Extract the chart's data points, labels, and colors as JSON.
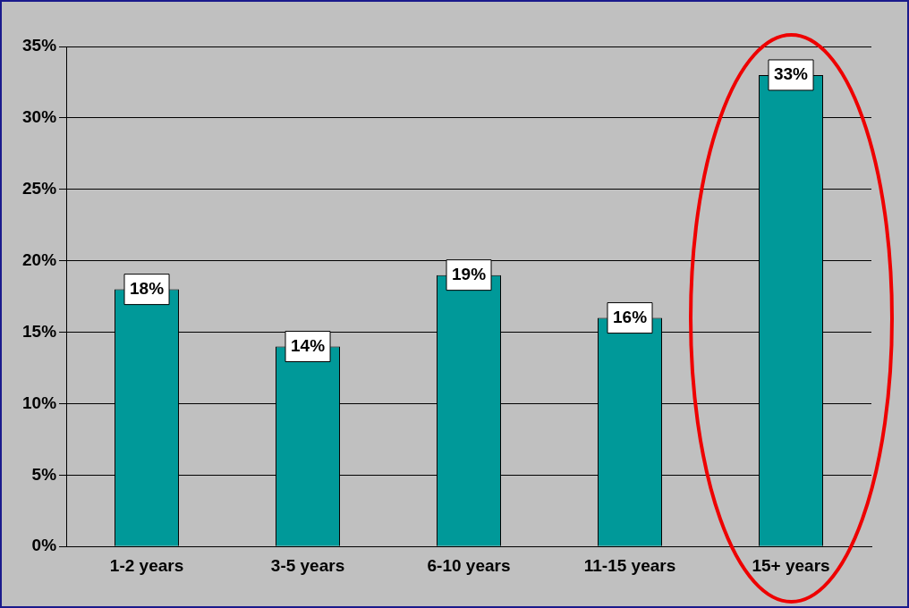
{
  "chart_data": {
    "type": "bar",
    "categories": [
      "1-2 years",
      "3-5 years",
      "6-10 years",
      "11-15 years",
      "15+ years"
    ],
    "values": [
      18,
      14,
      19,
      16,
      33
    ],
    "color": "#009999",
    "value_labels": [
      "18%",
      "14%",
      "19%",
      "16%",
      "33%"
    ],
    "ylim": [
      0,
      35
    ],
    "yticks": [
      {
        "value": 0,
        "label": "0%"
      },
      {
        "value": 5,
        "label": "5%"
      },
      {
        "value": 10,
        "label": "10%"
      },
      {
        "value": 15,
        "label": "15%"
      },
      {
        "value": 20,
        "label": "20%"
      },
      {
        "value": 25,
        "label": "25%"
      },
      {
        "value": 30,
        "label": "30%"
      },
      {
        "value": 35,
        "label": "35%"
      }
    ],
    "grid": "y",
    "legend": false
  }
}
